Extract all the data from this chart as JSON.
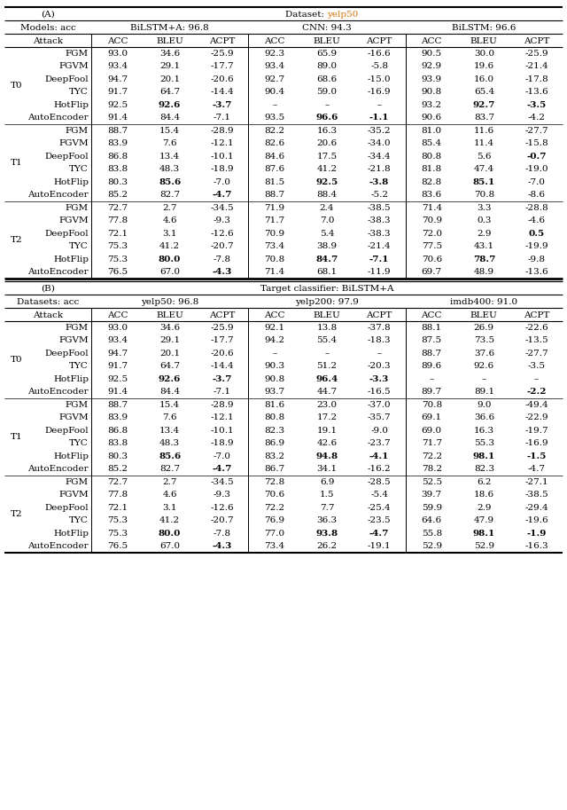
{
  "title_A": "(A)",
  "dataset_A_label": "Dataset:",
  "dataset_A_value": "yelp50",
  "title_B": "(B)",
  "dataset_B_label": "Target classifier: BiLSTM+A",
  "models_label": "Models: acc",
  "datasets_label": "Datasets: acc",
  "attack_label": "Attack",
  "col_headers": [
    "ACC",
    "BLEU",
    "ACPT"
  ],
  "highlight_color": "#d4720c",
  "section_A": {
    "model_headers": [
      {
        "text": "BiLSTM+A: 96.8",
        "plain": "BiLSTM+A: ",
        "bold": "96.8"
      },
      {
        "text": "CNN: 94.3",
        "plain": "CNN: ",
        "bold": "94.3"
      },
      {
        "text": "BiLSTM: 96.6",
        "plain": "BiLSTM: ",
        "bold": "96.6"
      }
    ],
    "tiers": [
      "T0",
      "T1",
      "T2"
    ],
    "attacks": [
      "FGM",
      "FGVM",
      "DeepFool",
      "TYC",
      "HotFlip",
      "AutoEncoder"
    ],
    "data": {
      "T0": {
        "BiLSTM+A": [
          [
            "93.0",
            "34.6",
            "-25.9",
            false,
            false,
            false
          ],
          [
            "93.4",
            "29.1",
            "-17.7",
            false,
            false,
            false
          ],
          [
            "94.7",
            "20.1",
            "-20.6",
            false,
            false,
            false
          ],
          [
            "91.7",
            "64.7",
            "-14.4",
            false,
            false,
            false
          ],
          [
            "92.5",
            "92.6",
            "-3.7",
            false,
            true,
            true
          ],
          [
            "91.4",
            "84.4",
            "-7.1",
            false,
            false,
            false
          ]
        ],
        "CNN": [
          [
            "92.3",
            "65.9",
            "-16.6",
            false,
            false,
            false
          ],
          [
            "93.4",
            "89.0",
            "-5.8",
            false,
            false,
            false
          ],
          [
            "92.7",
            "68.6",
            "-15.0",
            false,
            false,
            false
          ],
          [
            "90.4",
            "59.0",
            "-16.9",
            false,
            false,
            false
          ],
          [
            "–",
            "–",
            "–",
            false,
            false,
            false
          ],
          [
            "93.5",
            "96.6",
            "-1.1",
            false,
            true,
            true
          ]
        ],
        "BiLSTM": [
          [
            "90.5",
            "30.0",
            "-25.9",
            false,
            false,
            false
          ],
          [
            "92.9",
            "19.6",
            "-21.4",
            false,
            false,
            false
          ],
          [
            "93.9",
            "16.0",
            "-17.8",
            false,
            false,
            false
          ],
          [
            "90.8",
            "65.4",
            "-13.6",
            false,
            false,
            false
          ],
          [
            "93.2",
            "92.7",
            "-3.5",
            false,
            true,
            true
          ],
          [
            "90.6",
            "83.7",
            "-4.2",
            false,
            false,
            false
          ]
        ]
      },
      "T1": {
        "BiLSTM+A": [
          [
            "88.7",
            "15.4",
            "-28.9",
            false,
            false,
            false
          ],
          [
            "83.9",
            "7.6",
            "-12.1",
            false,
            false,
            false
          ],
          [
            "86.8",
            "13.4",
            "-10.1",
            false,
            false,
            false
          ],
          [
            "83.8",
            "48.3",
            "-18.9",
            false,
            false,
            false
          ],
          [
            "80.3",
            "85.6",
            "-7.0",
            false,
            true,
            false
          ],
          [
            "85.2",
            "82.7",
            "-4.7",
            false,
            false,
            true
          ]
        ],
        "CNN": [
          [
            "82.2",
            "16.3",
            "-35.2",
            false,
            false,
            false
          ],
          [
            "82.6",
            "20.6",
            "-34.0",
            false,
            false,
            false
          ],
          [
            "84.6",
            "17.5",
            "-34.4",
            false,
            false,
            false
          ],
          [
            "87.6",
            "41.2",
            "-21.8",
            false,
            false,
            false
          ],
          [
            "81.5",
            "92.5",
            "-3.8",
            false,
            true,
            true
          ],
          [
            "88.7",
            "88.4",
            "-5.2",
            false,
            false,
            false
          ]
        ],
        "BiLSTM": [
          [
            "81.0",
            "11.6",
            "-27.7",
            false,
            false,
            false
          ],
          [
            "85.4",
            "11.4",
            "-15.8",
            false,
            false,
            false
          ],
          [
            "80.8",
            "5.6",
            "-0.7",
            false,
            false,
            true
          ],
          [
            "81.8",
            "47.4",
            "-19.0",
            false,
            false,
            false
          ],
          [
            "82.8",
            "85.1",
            "-7.0",
            false,
            true,
            false
          ],
          [
            "83.6",
            "70.8",
            "-8.6",
            false,
            false,
            false
          ]
        ]
      },
      "T2": {
        "BiLSTM+A": [
          [
            "72.7",
            "2.7",
            "-34.5",
            false,
            false,
            false
          ],
          [
            "77.8",
            "4.6",
            "-9.3",
            false,
            false,
            false
          ],
          [
            "72.1",
            "3.1",
            "-12.6",
            false,
            false,
            false
          ],
          [
            "75.3",
            "41.2",
            "-20.7",
            false,
            false,
            false
          ],
          [
            "75.3",
            "80.0",
            "-7.8",
            false,
            true,
            false
          ],
          [
            "76.5",
            "67.0",
            "-4.3",
            false,
            false,
            true
          ]
        ],
        "CNN": [
          [
            "71.9",
            "2.4",
            "-38.5",
            false,
            false,
            false
          ],
          [
            "71.7",
            "7.0",
            "-38.3",
            false,
            false,
            false
          ],
          [
            "70.9",
            "5.4",
            "-38.3",
            false,
            false,
            false
          ],
          [
            "73.4",
            "38.9",
            "-21.4",
            false,
            false,
            false
          ],
          [
            "70.8",
            "84.7",
            "-7.1",
            false,
            true,
            true
          ],
          [
            "71.4",
            "68.1",
            "-11.9",
            false,
            false,
            false
          ]
        ],
        "BiLSTM": [
          [
            "71.4",
            "3.3",
            "-28.8",
            false,
            false,
            false
          ],
          [
            "70.9",
            "0.3",
            "-4.6",
            false,
            false,
            false
          ],
          [
            "72.0",
            "2.9",
            "0.5",
            false,
            false,
            true
          ],
          [
            "77.5",
            "43.1",
            "-19.9",
            false,
            false,
            false
          ],
          [
            "70.6",
            "78.7",
            "-9.8",
            false,
            true,
            false
          ],
          [
            "69.7",
            "48.9",
            "-13.6",
            false,
            false,
            false
          ]
        ]
      }
    }
  },
  "section_B": {
    "dataset_headers": [
      {
        "text": "yelp50: 96.8",
        "plain": "yelp50: ",
        "bold": "96.8",
        "color": true
      },
      {
        "text": "yelp200: 97.9",
        "plain": "yelp200: ",
        "bold": "97.9",
        "color": true
      },
      {
        "text": "imdb400: 91.0",
        "plain": "imdb400: ",
        "bold": "91.0",
        "color": true
      }
    ],
    "tiers": [
      "T0",
      "T1",
      "T2"
    ],
    "attacks": [
      "FGM",
      "FGVM",
      "DeepFool",
      "TYC",
      "HotFlip",
      "AutoEncoder"
    ],
    "data": {
      "T0": {
        "yelp50": [
          [
            "93.0",
            "34.6",
            "-25.9",
            false,
            false,
            false
          ],
          [
            "93.4",
            "29.1",
            "-17.7",
            false,
            false,
            false
          ],
          [
            "94.7",
            "20.1",
            "-20.6",
            false,
            false,
            false
          ],
          [
            "91.7",
            "64.7",
            "-14.4",
            false,
            false,
            false
          ],
          [
            "92.5",
            "92.6",
            "-3.7",
            false,
            true,
            true
          ],
          [
            "91.4",
            "84.4",
            "-7.1",
            false,
            false,
            false
          ]
        ],
        "yelp200": [
          [
            "92.1",
            "13.8",
            "-37.8",
            false,
            false,
            false
          ],
          [
            "94.2",
            "55.4",
            "-18.3",
            false,
            false,
            false
          ],
          [
            "–",
            "–",
            "–",
            false,
            false,
            false
          ],
          [
            "90.3",
            "51.2",
            "-20.3",
            false,
            false,
            false
          ],
          [
            "90.8",
            "96.4",
            "-3.3",
            false,
            true,
            true
          ],
          [
            "93.7",
            "44.7",
            "-16.5",
            false,
            false,
            false
          ]
        ],
        "imdb400": [
          [
            "88.1",
            "26.9",
            "-22.6",
            false,
            false,
            false
          ],
          [
            "87.5",
            "73.5",
            "-13.5",
            false,
            false,
            false
          ],
          [
            "88.7",
            "37.6",
            "-27.7",
            false,
            false,
            false
          ],
          [
            "89.6",
            "92.6",
            "-3.5",
            false,
            false,
            false
          ],
          [
            "–",
            "–",
            "–",
            false,
            false,
            false
          ],
          [
            "89.7",
            "89.1",
            "-2.2",
            false,
            false,
            true
          ]
        ]
      },
      "T1": {
        "yelp50": [
          [
            "88.7",
            "15.4",
            "-28.9",
            false,
            false,
            false
          ],
          [
            "83.9",
            "7.6",
            "-12.1",
            false,
            false,
            false
          ],
          [
            "86.8",
            "13.4",
            "-10.1",
            false,
            false,
            false
          ],
          [
            "83.8",
            "48.3",
            "-18.9",
            false,
            false,
            false
          ],
          [
            "80.3",
            "85.6",
            "-7.0",
            false,
            true,
            false
          ],
          [
            "85.2",
            "82.7",
            "-4.7",
            false,
            false,
            true
          ]
        ],
        "yelp200": [
          [
            "81.6",
            "23.0",
            "-37.0",
            false,
            false,
            false
          ],
          [
            "80.8",
            "17.2",
            "-35.7",
            false,
            false,
            false
          ],
          [
            "82.3",
            "19.1",
            "-9.0",
            false,
            false,
            false
          ],
          [
            "86.9",
            "42.6",
            "-23.7",
            false,
            false,
            false
          ],
          [
            "83.2",
            "94.8",
            "-4.1",
            false,
            true,
            true
          ],
          [
            "86.7",
            "34.1",
            "-16.2",
            false,
            false,
            false
          ]
        ],
        "imdb400": [
          [
            "70.8",
            "9.0",
            "-49.4",
            false,
            false,
            false
          ],
          [
            "69.1",
            "36.6",
            "-22.9",
            false,
            false,
            false
          ],
          [
            "69.0",
            "16.3",
            "-19.7",
            false,
            false,
            false
          ],
          [
            "71.7",
            "55.3",
            "-16.9",
            false,
            false,
            false
          ],
          [
            "72.2",
            "98.1",
            "-1.5",
            false,
            true,
            true
          ],
          [
            "78.2",
            "82.3",
            "-4.7",
            false,
            false,
            false
          ]
        ]
      },
      "T2": {
        "yelp50": [
          [
            "72.7",
            "2.7",
            "-34.5",
            false,
            false,
            false
          ],
          [
            "77.8",
            "4.6",
            "-9.3",
            false,
            false,
            false
          ],
          [
            "72.1",
            "3.1",
            "-12.6",
            false,
            false,
            false
          ],
          [
            "75.3",
            "41.2",
            "-20.7",
            false,
            false,
            false
          ],
          [
            "75.3",
            "80.0",
            "-7.8",
            false,
            true,
            false
          ],
          [
            "76.5",
            "67.0",
            "-4.3",
            false,
            false,
            true
          ]
        ],
        "yelp200": [
          [
            "72.8",
            "6.9",
            "-28.5",
            false,
            false,
            false
          ],
          [
            "70.6",
            "1.5",
            "-5.4",
            false,
            false,
            false
          ],
          [
            "72.2",
            "7.7",
            "-25.4",
            false,
            false,
            false
          ],
          [
            "76.9",
            "36.3",
            "-23.5",
            false,
            false,
            false
          ],
          [
            "77.0",
            "93.8",
            "-4.7",
            false,
            true,
            true
          ],
          [
            "73.4",
            "26.2",
            "-19.1",
            false,
            false,
            false
          ]
        ],
        "imdb400": [
          [
            "52.5",
            "6.2",
            "-27.1",
            false,
            false,
            false
          ],
          [
            "39.7",
            "18.6",
            "-38.5",
            false,
            false,
            false
          ],
          [
            "59.9",
            "2.9",
            "-29.4",
            false,
            false,
            false
          ],
          [
            "64.6",
            "47.9",
            "-19.6",
            false,
            false,
            false
          ],
          [
            "55.8",
            "98.1",
            "-1.9",
            false,
            true,
            true
          ],
          [
            "52.9",
            "52.9",
            "-16.3",
            false,
            false,
            false
          ]
        ]
      }
    }
  }
}
